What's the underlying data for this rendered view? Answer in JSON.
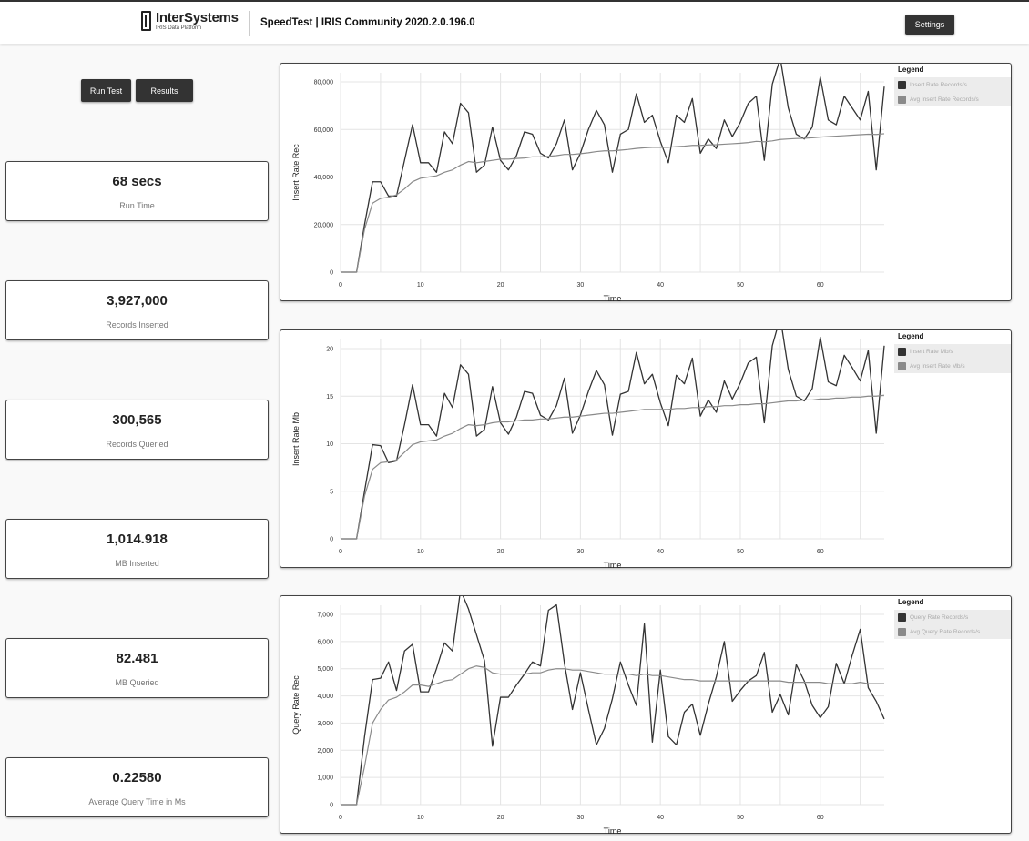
{
  "header": {
    "logo_name": "InterSystems",
    "logo_sub": "IRIS Data Platform",
    "title": "SpeedTest | IRIS Community 2020.2.0.196.0",
    "settings_label": "Settings"
  },
  "controls": {
    "run_label": "Run Test",
    "results_label": "Results"
  },
  "stats": [
    {
      "value": "68 secs",
      "label": "Run Time"
    },
    {
      "value": "3,927,000",
      "label": "Records Inserted"
    },
    {
      "value": "300,565",
      "label": "Records Queried"
    },
    {
      "value": "1,014.918",
      "label": "MB Inserted"
    },
    {
      "value": "82.481",
      "label": "MB Queried"
    },
    {
      "value": "0.22580",
      "label": "Average Query Time in Ms"
    }
  ],
  "colors": {
    "series_dark": "#333333",
    "series_light": "#8a8a8a",
    "button": "#333333"
  },
  "chart_data": [
    {
      "type": "line",
      "title": "",
      "xlabel": "Time",
      "ylabel": "Insert Rate Rec",
      "xlim": [
        0,
        68
      ],
      "ylim": [
        0,
        80000
      ],
      "xticks": [
        0,
        10,
        20,
        30,
        40,
        50,
        60
      ],
      "yticks": [
        0,
        20000,
        40000,
        60000,
        80000
      ],
      "ytick_labels": [
        "0",
        "20,000",
        "40,000",
        "60,000",
        "80,000"
      ],
      "grid": true,
      "legend_title": "Legend",
      "legend_position": "right",
      "x": [
        0,
        1,
        2,
        3,
        4,
        5,
        6,
        7,
        8,
        9,
        10,
        11,
        12,
        13,
        14,
        15,
        16,
        17,
        18,
        19,
        20,
        21,
        22,
        23,
        24,
        25,
        26,
        27,
        28,
        29,
        30,
        31,
        32,
        33,
        34,
        35,
        36,
        37,
        38,
        39,
        40,
        41,
        42,
        43,
        44,
        45,
        46,
        47,
        48,
        49,
        50,
        51,
        52,
        53,
        54,
        55,
        56,
        57,
        58,
        59,
        60,
        61,
        62,
        63,
        64,
        65,
        66,
        67,
        68
      ],
      "series": [
        {
          "name": "Insert Rate Records/s",
          "color": "#333333",
          "values": [
            0,
            0,
            0,
            20000,
            38000,
            38000,
            32000,
            32000,
            47000,
            62000,
            46000,
            46000,
            42000,
            59000,
            54000,
            71000,
            67000,
            42000,
            45000,
            61000,
            47000,
            43000,
            49000,
            59000,
            58000,
            50000,
            48000,
            54000,
            64000,
            43000,
            50000,
            60000,
            68000,
            62000,
            42000,
            58000,
            60000,
            75000,
            63000,
            66000,
            55000,
            46000,
            66000,
            63000,
            73000,
            50000,
            56000,
            52000,
            64000,
            57000,
            63000,
            71000,
            74000,
            47000,
            79000,
            90000,
            69000,
            58000,
            56000,
            61000,
            82000,
            64000,
            62000,
            74000,
            69000,
            64000,
            76000,
            43000,
            78000
          ]
        },
        {
          "name": "Avg Insert Rate Records/s",
          "color": "#8a8a8a",
          "values": [
            0,
            0,
            0,
            18000,
            29000,
            31000,
            31500,
            32500,
            35000,
            38000,
            39500,
            40000,
            40500,
            42000,
            43000,
            45000,
            46500,
            46000,
            46500,
            47000,
            47500,
            47500,
            47800,
            48000,
            48500,
            48500,
            48700,
            49000,
            49500,
            49500,
            49800,
            50200,
            50700,
            51000,
            51000,
            51300,
            51600,
            52000,
            52300,
            52500,
            52500,
            52500,
            52800,
            53000,
            53300,
            53300,
            53500,
            53600,
            53800,
            54000,
            54200,
            54500,
            55000,
            54800,
            55200,
            55800,
            56000,
            56200,
            56300,
            56500,
            56800,
            57000,
            57200,
            57400,
            57600,
            57800,
            58000,
            57900,
            58200
          ]
        }
      ]
    },
    {
      "type": "line",
      "title": "",
      "xlabel": "Time",
      "ylabel": "Insert Rate Mb",
      "xlim": [
        0,
        68
      ],
      "ylim": [
        0,
        20
      ],
      "xticks": [
        0,
        10,
        20,
        30,
        40,
        50,
        60
      ],
      "yticks": [
        0,
        5,
        10,
        15,
        20
      ],
      "ytick_labels": [
        "0",
        "5",
        "10",
        "15",
        "20"
      ],
      "grid": true,
      "legend_title": "Legend",
      "legend_position": "right",
      "x": [
        0,
        1,
        2,
        3,
        4,
        5,
        6,
        7,
        8,
        9,
        10,
        11,
        12,
        13,
        14,
        15,
        16,
        17,
        18,
        19,
        20,
        21,
        22,
        23,
        24,
        25,
        26,
        27,
        28,
        29,
        30,
        31,
        32,
        33,
        34,
        35,
        36,
        37,
        38,
        39,
        40,
        41,
        42,
        43,
        44,
        45,
        46,
        47,
        48,
        49,
        50,
        51,
        52,
        53,
        54,
        55,
        56,
        57,
        58,
        59,
        60,
        61,
        62,
        63,
        64,
        65,
        66,
        67,
        68
      ],
      "series": [
        {
          "name": "Insert Rate Mb/s",
          "color": "#333333",
          "values": [
            0,
            0,
            0,
            5,
            9.9,
            9.8,
            8,
            8.2,
            12,
            16.2,
            12,
            12,
            10.8,
            15.3,
            13.8,
            18.3,
            17.3,
            10.8,
            11.5,
            16,
            12.2,
            11,
            12.8,
            15.5,
            15.3,
            13,
            12.5,
            14,
            16.9,
            11.1,
            13,
            15.5,
            17.7,
            16.2,
            10.9,
            15.2,
            15.5,
            19.6,
            16.3,
            17.3,
            14.3,
            11.9,
            17.2,
            16.3,
            19,
            12.9,
            14.6,
            13.3,
            16.6,
            14.7,
            16.4,
            18.5,
            19.1,
            12.2,
            20.3,
            23.3,
            17.8,
            15,
            14.5,
            15.8,
            21.2,
            16.5,
            16.1,
            19.3,
            18,
            16.6,
            19.8,
            11.1,
            20.3
          ]
        },
        {
          "name": "Avg Insert Rate Mb/s",
          "color": "#8a8a8a",
          "values": [
            0,
            0,
            0,
            4.5,
            7.3,
            8,
            8.1,
            8.3,
            9.1,
            9.9,
            10.2,
            10.3,
            10.4,
            10.8,
            11.1,
            11.6,
            12,
            11.9,
            12,
            12.2,
            12.3,
            12.3,
            12.4,
            12.5,
            12.5,
            12.6,
            12.6,
            12.7,
            12.8,
            12.8,
            12.9,
            13,
            13.1,
            13.2,
            13.2,
            13.3,
            13.4,
            13.5,
            13.6,
            13.6,
            13.6,
            13.6,
            13.7,
            13.7,
            13.8,
            13.8,
            13.9,
            13.9,
            14,
            14,
            14.1,
            14.1,
            14.2,
            14.2,
            14.3,
            14.4,
            14.5,
            14.5,
            14.6,
            14.6,
            14.7,
            14.7,
            14.8,
            14.8,
            14.9,
            14.9,
            15,
            15,
            15.1
          ]
        }
      ]
    },
    {
      "type": "line",
      "title": "",
      "xlabel": "Time",
      "ylabel": "Query Rate Rec",
      "xlim": [
        0,
        68
      ],
      "ylim": [
        0,
        7000
      ],
      "xticks": [
        0,
        10,
        20,
        30,
        40,
        50,
        60
      ],
      "yticks": [
        0,
        1000,
        2000,
        3000,
        4000,
        5000,
        6000,
        7000
      ],
      "ytick_labels": [
        "0",
        "1,000",
        "2,000",
        "3,000",
        "4,000",
        "5,000",
        "6,000",
        "7,000"
      ],
      "grid": true,
      "legend_title": "Legend",
      "legend_position": "right",
      "x": [
        0,
        1,
        2,
        3,
        4,
        5,
        6,
        7,
        8,
        9,
        10,
        11,
        12,
        13,
        14,
        15,
        16,
        17,
        18,
        19,
        20,
        21,
        22,
        23,
        24,
        25,
        26,
        27,
        28,
        29,
        30,
        31,
        32,
        33,
        34,
        35,
        36,
        37,
        38,
        39,
        40,
        41,
        42,
        43,
        44,
        45,
        46,
        47,
        48,
        49,
        50,
        51,
        52,
        53,
        54,
        55,
        56,
        57,
        58,
        59,
        60,
        61,
        62,
        63,
        64,
        65,
        66,
        67,
        68
      ],
      "series": [
        {
          "name": "Query Rate Records/s",
          "color": "#333333",
          "values": [
            0,
            0,
            0,
            2500,
            4600,
            4650,
            5250,
            4200,
            5650,
            5900,
            4150,
            4150,
            5000,
            5950,
            5650,
            7900,
            7200,
            6250,
            5300,
            2150,
            3950,
            3950,
            4400,
            4800,
            5250,
            5100,
            7150,
            7350,
            5200,
            3500,
            4850,
            3500,
            2200,
            2800,
            3900,
            5250,
            4400,
            3650,
            6650,
            2300,
            4950,
            2500,
            2200,
            3400,
            3700,
            2550,
            3700,
            4700,
            6000,
            3800,
            4200,
            4550,
            4750,
            5600,
            3400,
            4050,
            3300,
            5150,
            4550,
            3650,
            3200,
            3600,
            5200,
            4450,
            5500,
            6450,
            4300,
            3800,
            3150
          ]
        },
        {
          "name": "Avg Query Rate Records/s",
          "color": "#8a8a8a",
          "values": [
            0,
            0,
            0,
            1400,
            3000,
            3500,
            3850,
            3950,
            4150,
            4400,
            4400,
            4350,
            4450,
            4550,
            4600,
            4800,
            5000,
            5100,
            5050,
            4850,
            4800,
            4800,
            4800,
            4800,
            4850,
            4850,
            4950,
            5000,
            5000,
            4950,
            4950,
            4900,
            4850,
            4800,
            4800,
            4800,
            4800,
            4750,
            4800,
            4750,
            4750,
            4700,
            4650,
            4600,
            4600,
            4550,
            4550,
            4550,
            4550,
            4550,
            4550,
            4550,
            4550,
            4550,
            4550,
            4550,
            4500,
            4500,
            4500,
            4500,
            4500,
            4450,
            4450,
            4450,
            4450,
            4500,
            4450,
            4450,
            4450
          ]
        }
      ]
    }
  ]
}
